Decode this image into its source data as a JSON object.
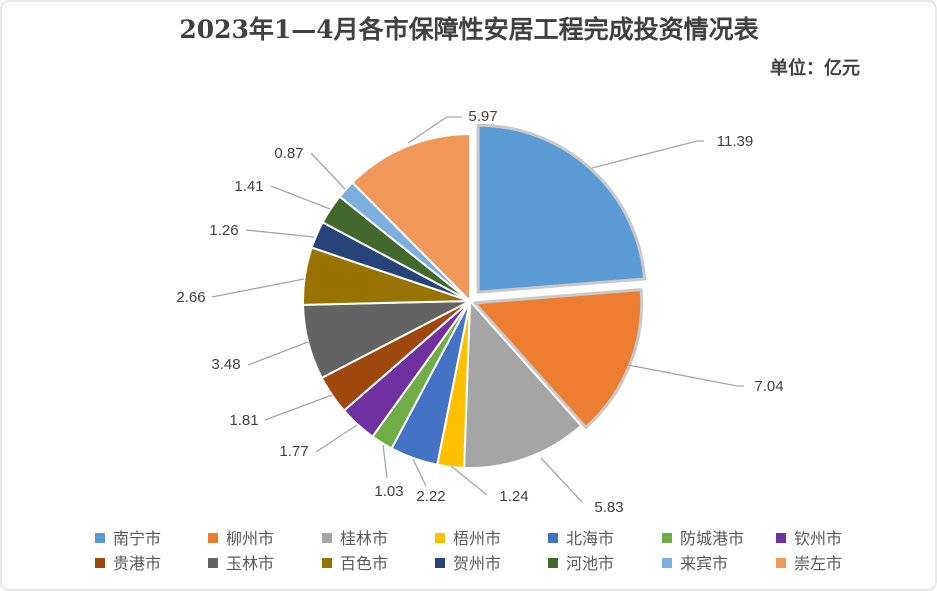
{
  "chart_data": {
    "type": "pie",
    "title": "2023年1—4月各市保障性安居工程完成投资情况表",
    "unit_label": "单位：亿元",
    "categories": [
      "南宁市",
      "柳州市",
      "桂林市",
      "梧州市",
      "北海市",
      "防城港市",
      "钦州市",
      "贵港市",
      "玉林市",
      "百色市",
      "贺州市",
      "河池市",
      "来宾市",
      "崇左市"
    ],
    "values": [
      11.39,
      7.04,
      5.83,
      1.24,
      2.22,
      1.03,
      1.77,
      1.81,
      3.48,
      2.66,
      1.26,
      1.41,
      0.87,
      5.97
    ],
    "colors": [
      "#5B9BD5",
      "#ED7D31",
      "#A5A5A5",
      "#FFC000",
      "#4472C4",
      "#70AD47",
      "#7030A0",
      "#9E480E",
      "#636363",
      "#997300",
      "#264478",
      "#43682B",
      "#7CAFDD",
      "#F1975A"
    ],
    "exploded": [
      true,
      true,
      false,
      false,
      false,
      false,
      false,
      false,
      false,
      false,
      false,
      false,
      false,
      false
    ],
    "legend_position": "bottom"
  }
}
